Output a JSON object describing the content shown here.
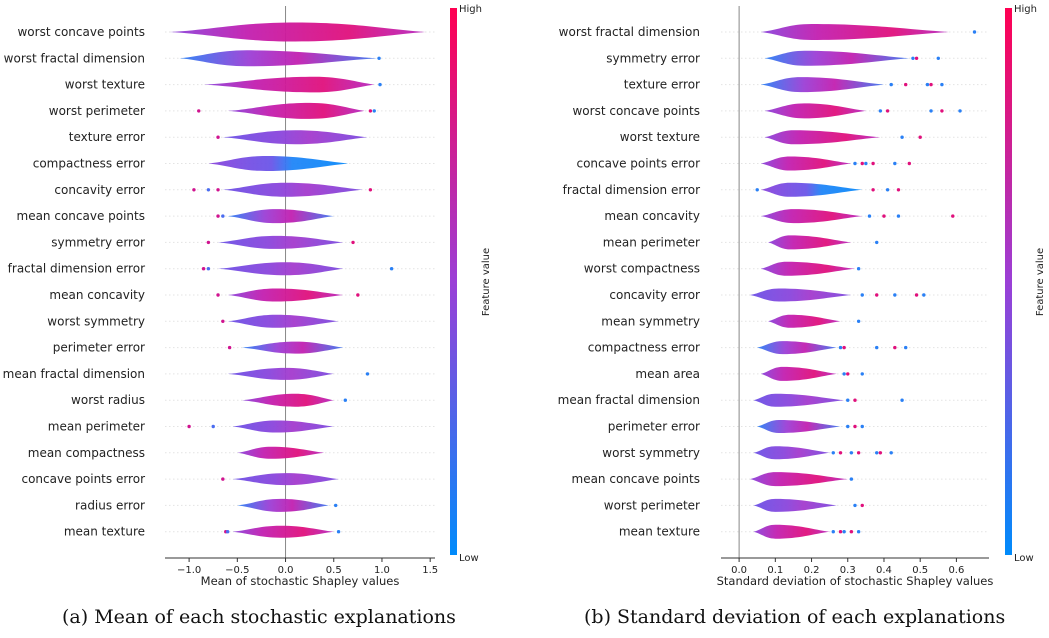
{
  "captions": {
    "a": "(a) Mean of each stochastic explanations",
    "b": "(b) Standard deviation of each explanations"
  },
  "colorbar": {
    "high": "High",
    "low": "Low",
    "label": "Feature value",
    "colors": [
      "#008bfb",
      "#9b3fd6",
      "#ff0052"
    ]
  },
  "chart_data": [
    {
      "type": "violin",
      "xlabel": "Mean of stochastic Shapley values",
      "xlim": [
        -1.25,
        1.55
      ],
      "xticks": [
        -1.0,
        -0.5,
        0.0,
        0.5,
        1.0,
        1.5
      ],
      "xtick_labels": [
        "−1.0",
        "−0.5",
        "0.0",
        "0.5",
        "1.0",
        "1.5"
      ],
      "zero_line": 0,
      "features": [
        {
          "name": "worst concave points",
          "min": -1.2,
          "max": 1.45,
          "peak": 0.1,
          "width": 0.95,
          "color": "high",
          "outliers": []
        },
        {
          "name": "worst fractal dimension",
          "min": -1.1,
          "max": 0.95,
          "peak": -0.4,
          "width": 0.8,
          "color": "mixed",
          "outliers": [
            0.97
          ]
        },
        {
          "name": "worst texture",
          "min": -0.85,
          "max": 0.92,
          "peak": 0.3,
          "width": 0.78,
          "color": "high",
          "outliers": [
            0.98
          ]
        },
        {
          "name": "worst perimeter",
          "min": -0.6,
          "max": 0.82,
          "peak": 0.25,
          "width": 0.8,
          "color": "high",
          "outliers": [
            -0.9,
            0.88,
            0.92
          ]
        },
        {
          "name": "texture error",
          "min": -0.65,
          "max": 0.85,
          "peak": 0.1,
          "width": 0.7,
          "color": "mid",
          "outliers": [
            -0.7
          ]
        },
        {
          "name": "compactness error",
          "min": -0.8,
          "max": 0.65,
          "peak": -0.2,
          "width": 0.75,
          "color": "low",
          "outliers": []
        },
        {
          "name": "concavity error",
          "min": -0.65,
          "max": 0.8,
          "peak": 0.0,
          "width": 0.7,
          "color": "mid",
          "outliers": [
            -0.95,
            -0.8,
            -0.7,
            0.88
          ]
        },
        {
          "name": "mean concave points",
          "min": -0.6,
          "max": 0.5,
          "peak": -0.1,
          "width": 0.7,
          "color": "mixed",
          "outliers": [
            -0.7,
            -0.65
          ]
        },
        {
          "name": "symmetry error",
          "min": -0.7,
          "max": 0.6,
          "peak": -0.1,
          "width": 0.65,
          "color": "mid",
          "outliers": [
            -0.8,
            0.7
          ]
        },
        {
          "name": "fractal dimension error",
          "min": -0.7,
          "max": 0.6,
          "peak": 0.0,
          "width": 0.65,
          "color": "mid",
          "outliers": [
            -0.85,
            -0.8,
            1.1
          ]
        },
        {
          "name": "mean concavity",
          "min": -0.6,
          "max": 0.6,
          "peak": -0.1,
          "width": 0.65,
          "color": "high",
          "outliers": [
            -0.7,
            0.75
          ]
        },
        {
          "name": "worst symmetry",
          "min": -0.6,
          "max": 0.55,
          "peak": -0.1,
          "width": 0.65,
          "color": "mid",
          "outliers": [
            -0.65
          ]
        },
        {
          "name": "perimeter error",
          "min": -0.45,
          "max": 0.6,
          "peak": 0.1,
          "width": 0.6,
          "color": "mixed",
          "outliers": [
            -0.58
          ]
        },
        {
          "name": "mean fractal dimension",
          "min": -0.6,
          "max": 0.5,
          "peak": 0.0,
          "width": 0.6,
          "color": "mid",
          "outliers": [
            0.85
          ]
        },
        {
          "name": "worst radius",
          "min": -0.45,
          "max": 0.5,
          "peak": 0.1,
          "width": 0.65,
          "color": "high",
          "outliers": [
            0.62
          ]
        },
        {
          "name": "mean perimeter",
          "min": -0.55,
          "max": 0.5,
          "peak": -0.1,
          "width": 0.6,
          "color": "mid",
          "outliers": [
            -1.0,
            -0.75
          ]
        },
        {
          "name": "mean compactness",
          "min": -0.5,
          "max": 0.4,
          "peak": -0.15,
          "width": 0.6,
          "color": "high",
          "outliers": []
        },
        {
          "name": "concave points error",
          "min": -0.55,
          "max": 0.55,
          "peak": 0.0,
          "width": 0.6,
          "color": "mid",
          "outliers": [
            -0.65
          ]
        },
        {
          "name": "radius error",
          "min": -0.5,
          "max": 0.45,
          "peak": -0.05,
          "width": 0.65,
          "color": "mixed",
          "outliers": [
            0.52
          ]
        },
        {
          "name": "mean texture",
          "min": -0.55,
          "max": 0.5,
          "peak": -0.05,
          "width": 0.6,
          "color": "high",
          "outliers": [
            -0.62,
            -0.6,
            0.55
          ]
        }
      ]
    },
    {
      "type": "violin",
      "xlabel": "Standard deviation of stochastic Shapley values",
      "xlim": [
        -0.05,
        0.69
      ],
      "xticks": [
        0.0,
        0.1,
        0.2,
        0.3,
        0.4,
        0.5,
        0.6
      ],
      "xtick_labels": [
        "0.0",
        "0.1",
        "0.2",
        "0.3",
        "0.4",
        "0.5",
        "0.6"
      ],
      "zero_line": 0,
      "features": [
        {
          "name": "worst fractal dimension",
          "min": 0.06,
          "max": 0.58,
          "peak": 0.2,
          "width": 0.8,
          "color": "high",
          "outliers": [
            0.65
          ]
        },
        {
          "name": "symmetry error",
          "min": 0.07,
          "max": 0.47,
          "peak": 0.18,
          "width": 0.75,
          "color": "mixed",
          "outliers": [
            0.48,
            0.49,
            0.55
          ]
        },
        {
          "name": "texture error",
          "min": 0.06,
          "max": 0.4,
          "peak": 0.17,
          "width": 0.75,
          "color": "mixed",
          "outliers": [
            0.42,
            0.46,
            0.52,
            0.53,
            0.56
          ]
        },
        {
          "name": "worst concave points",
          "min": 0.07,
          "max": 0.35,
          "peak": 0.18,
          "width": 0.75,
          "color": "high",
          "outliers": [
            0.39,
            0.41,
            0.53,
            0.56,
            0.61
          ]
        },
        {
          "name": "worst texture",
          "min": 0.07,
          "max": 0.39,
          "peak": 0.15,
          "width": 0.7,
          "color": "high",
          "outliers": [
            0.45,
            0.5
          ]
        },
        {
          "name": "concave points error",
          "min": 0.06,
          "max": 0.31,
          "peak": 0.14,
          "width": 0.7,
          "color": "high",
          "outliers": [
            0.32,
            0.34,
            0.35,
            0.37,
            0.43,
            0.47
          ]
        },
        {
          "name": "fractal dimension error",
          "min": 0.06,
          "max": 0.34,
          "peak": 0.14,
          "width": 0.7,
          "color": "low",
          "outliers": [
            0.05,
            0.37,
            0.41,
            0.44
          ]
        },
        {
          "name": "mean concavity",
          "min": 0.06,
          "max": 0.34,
          "peak": 0.15,
          "width": 0.7,
          "color": "high",
          "outliers": [
            0.36,
            0.4,
            0.44,
            0.59
          ]
        },
        {
          "name": "mean perimeter",
          "min": 0.08,
          "max": 0.31,
          "peak": 0.14,
          "width": 0.7,
          "color": "high",
          "outliers": [
            0.38
          ]
        },
        {
          "name": "worst compactness",
          "min": 0.06,
          "max": 0.32,
          "peak": 0.13,
          "width": 0.7,
          "color": "high",
          "outliers": [
            0.33
          ]
        },
        {
          "name": "concavity error",
          "min": 0.03,
          "max": 0.31,
          "peak": 0.11,
          "width": 0.65,
          "color": "mid",
          "outliers": [
            0.34,
            0.38,
            0.43,
            0.49,
            0.51
          ]
        },
        {
          "name": "mean symmetry",
          "min": 0.08,
          "max": 0.28,
          "peak": 0.14,
          "width": 0.65,
          "color": "high",
          "outliers": [
            0.33
          ]
        },
        {
          "name": "compactness error",
          "min": 0.05,
          "max": 0.27,
          "peak": 0.12,
          "width": 0.65,
          "color": "mixed",
          "outliers": [
            0.28,
            0.29,
            0.38,
            0.43,
            0.46
          ]
        },
        {
          "name": "mean area",
          "min": 0.06,
          "max": 0.27,
          "peak": 0.12,
          "width": 0.7,
          "color": "high",
          "outliers": [
            0.29,
            0.3,
            0.34
          ]
        },
        {
          "name": "mean fractal dimension",
          "min": 0.04,
          "max": 0.29,
          "peak": 0.1,
          "width": 0.65,
          "color": "mid",
          "outliers": [
            0.3,
            0.32,
            0.45
          ]
        },
        {
          "name": "perimeter error",
          "min": 0.05,
          "max": 0.28,
          "peak": 0.11,
          "width": 0.65,
          "color": "mixed",
          "outliers": [
            0.3,
            0.32,
            0.34
          ]
        },
        {
          "name": "worst symmetry",
          "min": 0.04,
          "max": 0.25,
          "peak": 0.1,
          "width": 0.65,
          "color": "mid",
          "outliers": [
            0.26,
            0.28,
            0.31,
            0.33,
            0.38,
            0.39,
            0.42
          ]
        },
        {
          "name": "mean concave points",
          "min": 0.03,
          "max": 0.3,
          "peak": 0.1,
          "width": 0.7,
          "color": "high",
          "outliers": [
            0.31
          ]
        },
        {
          "name": "worst perimeter",
          "min": 0.04,
          "max": 0.27,
          "peak": 0.1,
          "width": 0.65,
          "color": "mid",
          "outliers": [
            0.32,
            0.34
          ]
        },
        {
          "name": "mean texture",
          "min": 0.04,
          "max": 0.25,
          "peak": 0.1,
          "width": 0.7,
          "color": "high",
          "outliers": [
            0.26,
            0.28,
            0.29,
            0.31,
            0.33
          ]
        }
      ]
    }
  ]
}
